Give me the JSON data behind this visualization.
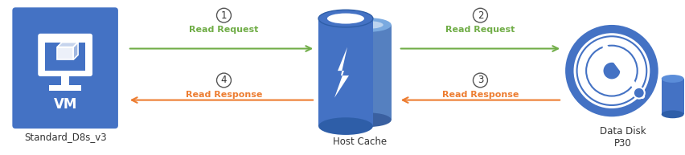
{
  "bg_color": "#ffffff",
  "vm_box_color": "#4472C4",
  "vm_label": "VM",
  "vm_sublabel": "Standard_D8s_v3",
  "cache_label": "Host Cache",
  "disk_label": "Data Disk\nP30",
  "arrow_green": "#70AD47",
  "arrow_orange": "#ED7D31",
  "step1_label": "Read Request",
  "step2_label": "Read Request",
  "step3_label": "Read Response",
  "step4_label": "Read Response",
  "step1_num": "1",
  "step2_num": "2",
  "step3_num": "3",
  "step4_num": "4",
  "sublabel_fontsize": 8.5,
  "step_fontsize": 8,
  "num_fontsize": 8.5,
  "cyl_blue": "#4472C4",
  "cyl_dark": "#2E5EA8",
  "cyl_light": "#5B8ED9",
  "disk_blue": "#4472C4",
  "disk_white": "#ffffff"
}
